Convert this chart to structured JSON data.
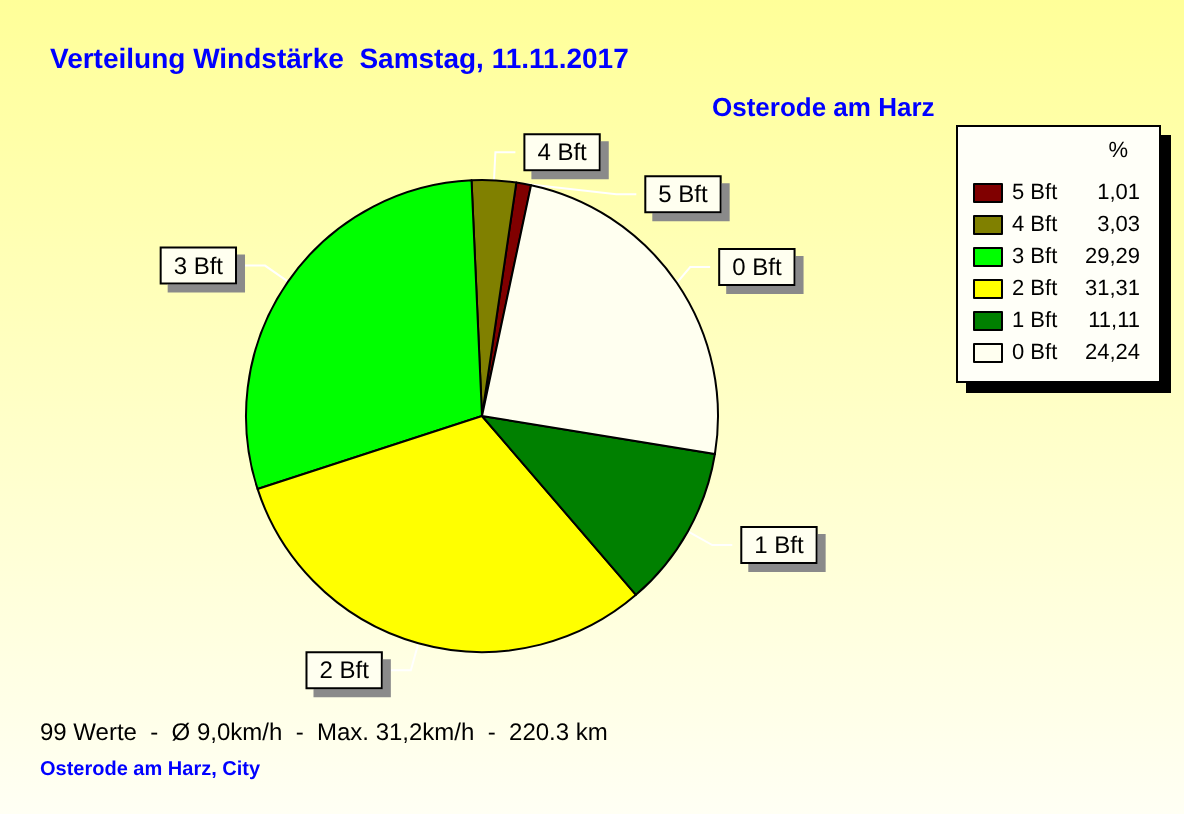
{
  "chart_data": {
    "type": "pie",
    "title": "Verteilung Windstärke  Samstag, 11.11.2017",
    "subtitle": "Osterode am Harz",
    "legend_title": "%",
    "categories": [
      "5 Bft",
      "4 Bft",
      "3 Bft",
      "2 Bft",
      "1 Bft",
      "0 Bft"
    ],
    "values": [
      1.01,
      3.03,
      29.29,
      31.31,
      11.11,
      24.24
    ],
    "value_labels": [
      "1,01",
      "3,03",
      "29,29",
      "31,31",
      "11,11",
      "24,24"
    ],
    "colors": [
      "#800000",
      "#808000",
      "#00ff00",
      "#ffff00",
      "#008000",
      "#fffff0"
    ],
    "legend": "top right",
    "annotations": [
      "99 Werte  -  Ø 9,0km/h  -  Max. 31,2km/h  -  220.3 km",
      "Osterode am Harz, City"
    ]
  }
}
